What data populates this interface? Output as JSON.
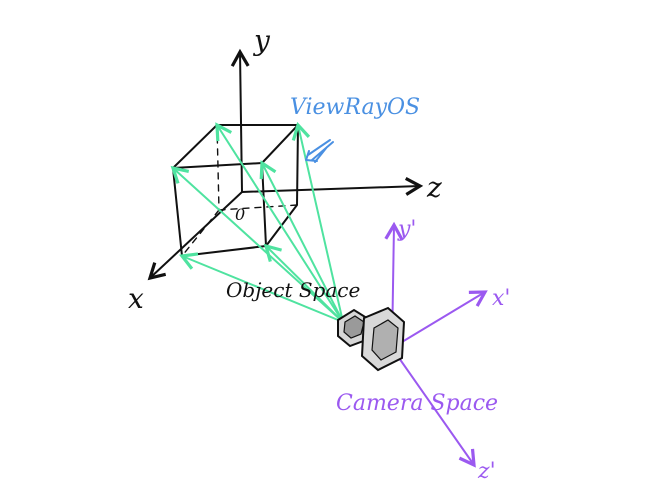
{
  "labels": {
    "object_y_axis": "y",
    "object_z_axis": "z",
    "object_x_axis": "x",
    "origin": "0",
    "view_ray": "ViewRayOS",
    "object_space": "Object Space",
    "camera_y_axis": "y'",
    "camera_x_axis": "x'",
    "camera_z_axis": "z'",
    "camera_space": "Camera Space"
  },
  "colors": {
    "ink": "#111111",
    "ray": "#4fe3a0",
    "label_blue": "#4a90e2",
    "camera_purple": "#9b59f0",
    "background": "#ffffff"
  }
}
